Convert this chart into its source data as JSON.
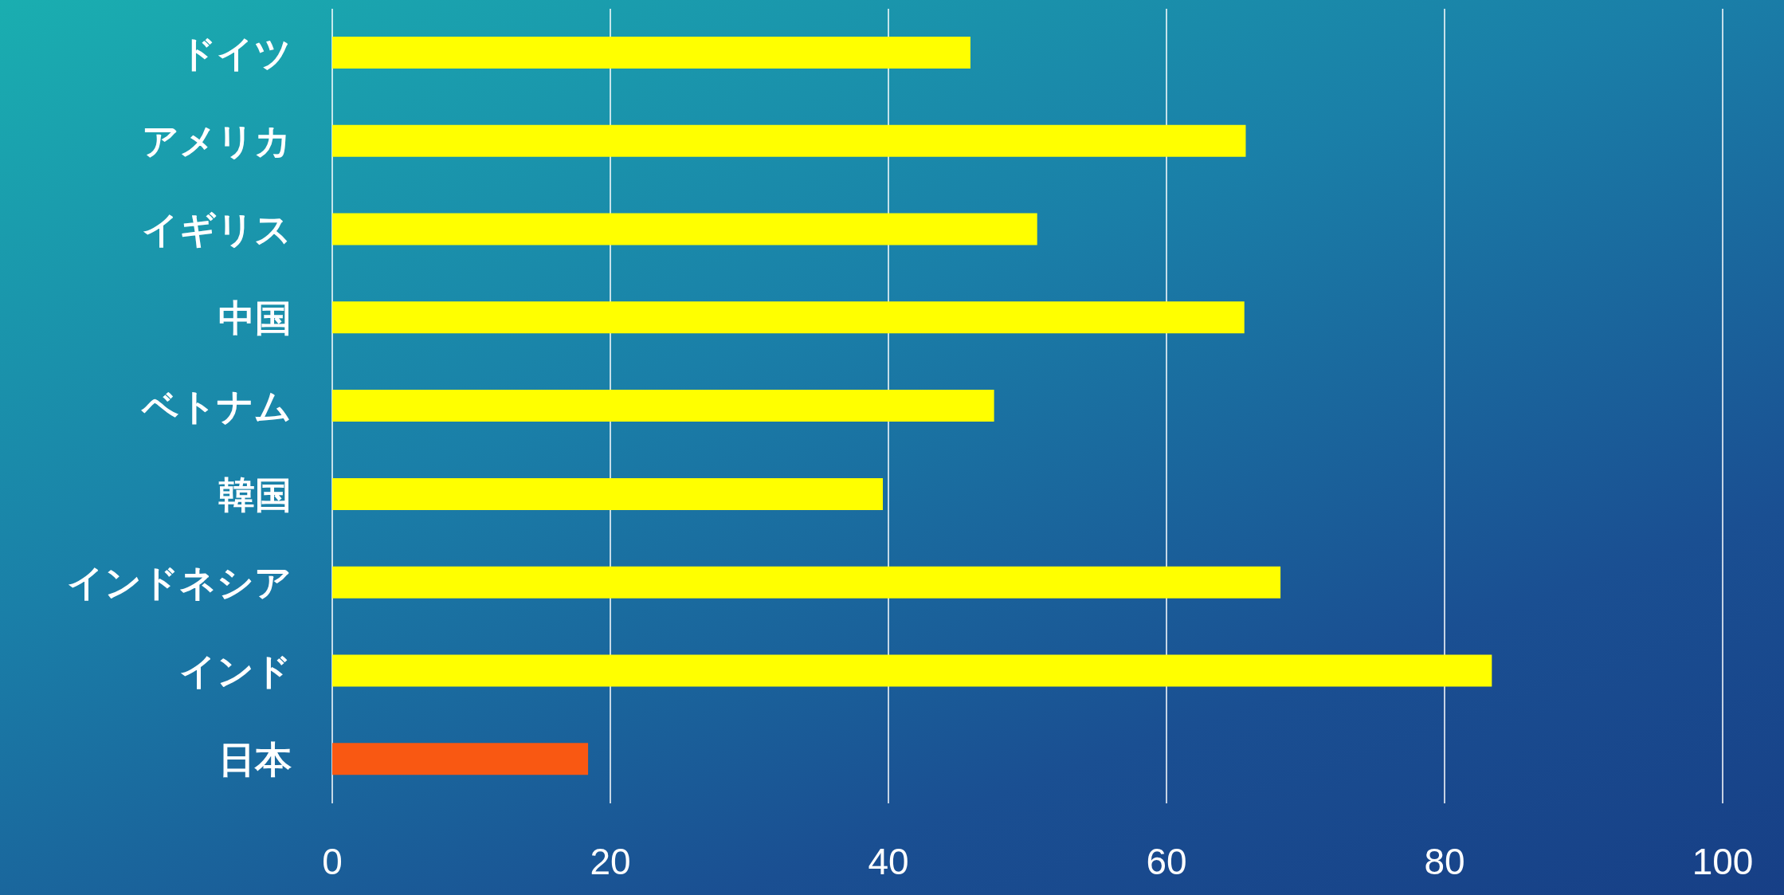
{
  "chart_data": {
    "type": "bar",
    "orientation": "horizontal",
    "categories": [
      "ドイツ",
      "アメリカ",
      "イギリス",
      "中国",
      "ベトナム",
      "韓国",
      "インドネシア",
      "インド",
      "日本"
    ],
    "values": [
      45.9,
      65.7,
      50.7,
      65.6,
      47.6,
      39.6,
      68.2,
      83.4,
      18.4
    ],
    "colors": [
      "#ffff00",
      "#ffff00",
      "#ffff00",
      "#ffff00",
      "#ffff00",
      "#ffff00",
      "#ffff00",
      "#ffff00",
      "#f95812"
    ],
    "xlim": [
      0,
      100
    ],
    "xticks": [
      0,
      20,
      40,
      60,
      80,
      100
    ],
    "grid": "x"
  }
}
